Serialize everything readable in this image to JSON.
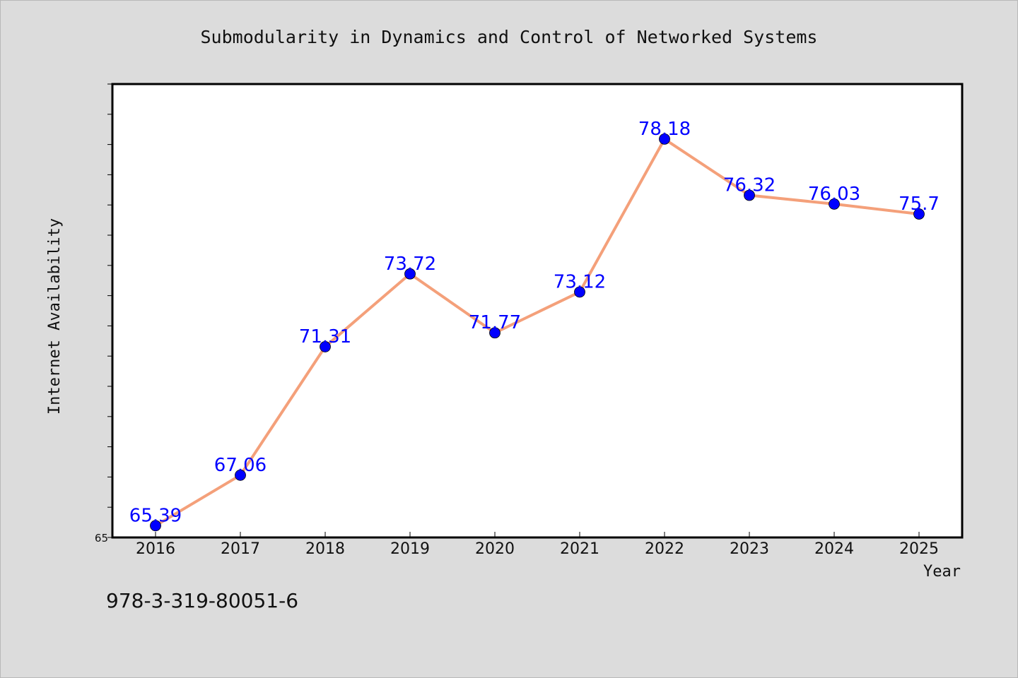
{
  "chart_data": {
    "type": "line",
    "title": "Submodularity in Dynamics and Control of Networked Systems",
    "xlabel": "Year",
    "ylabel": "Internet Availability",
    "categories": [
      "2016",
      "2017",
      "2018",
      "2019",
      "2020",
      "2021",
      "2022",
      "2023",
      "2024",
      "2025"
    ],
    "series": [
      {
        "values": [
          65.39,
          67.06,
          71.31,
          73.72,
          71.77,
          73.12,
          78.18,
          76.32,
          76.03,
          75.7
        ],
        "labels": [
          "65.39",
          "67.06",
          "71.31",
          "73.72",
          "71.77",
          "73.12",
          "78.18",
          "76.32",
          "76.03",
          "75.7"
        ],
        "line_color": "#f4a07a",
        "marker_color": "#0000ff"
      }
    ],
    "ylim": [
      65,
      80
    ],
    "y_tick_labels": [
      "65"
    ],
    "grid": false,
    "legend": "none"
  },
  "footer": {
    "isbn": "978-3-319-80051-6"
  },
  "colors": {
    "background": "#dcdcdc",
    "plot_background": "#ffffff",
    "line": "#f4a07a",
    "marker": "#0000ff",
    "data_label": "#0000ff"
  }
}
